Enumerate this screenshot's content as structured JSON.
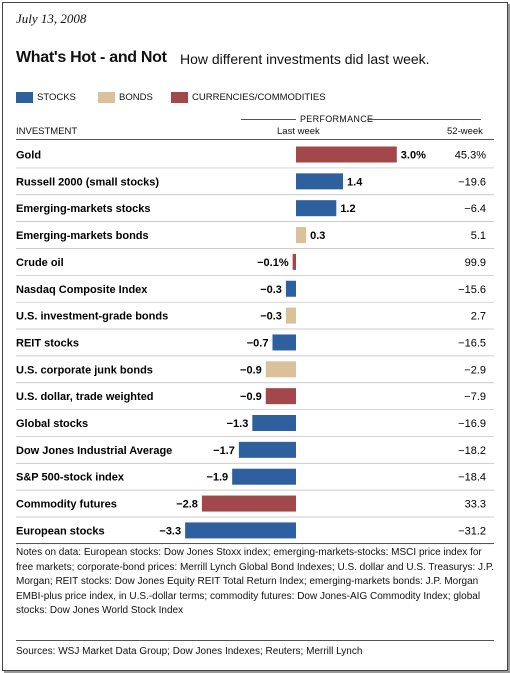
{
  "header": {
    "date": "July 13, 2008",
    "title": "What's Hot - and Not",
    "subtitle": "How different investments did last week."
  },
  "legend": [
    {
      "label": "STOCKS",
      "color": "#2e5f9e"
    },
    {
      "label": "BONDS",
      "color": "#d9c19a"
    },
    {
      "label": "CURRENCIES/COMMODITIES",
      "color": "#a3484a"
    }
  ],
  "columns": {
    "performance": "PERFORMANCE",
    "investment": "INVESTMENT",
    "last_week": "Last week",
    "week52": "52-week"
  },
  "chart_data": {
    "type": "bar",
    "orientation": "horizontal",
    "series_name": "Last week",
    "value_unit": "%",
    "categories": [
      "Gold",
      "Russell 2000 (small stocks)",
      "Emerging-markets stocks",
      "Emerging-markets bonds",
      "Crude oil",
      "Nasdaq Composite Index",
      "U.S. investment-grade bonds",
      "REIT stocks",
      "U.S. corporate junk bonds",
      "U.S. dollar, trade weighted",
      "Global stocks",
      "Dow Jones Industrial Average",
      "S&P 500-stock index",
      "Commodity futures",
      "European stocks"
    ],
    "values": [
      3.0,
      1.4,
      1.2,
      0.3,
      -0.1,
      -0.3,
      -0.3,
      -0.7,
      -0.9,
      -0.9,
      -1.3,
      -1.7,
      -1.9,
      -2.8,
      -3.3
    ],
    "value_labels": [
      "3.0%",
      "1.4",
      "1.2",
      "0.3",
      "−0.1%",
      "−0.3",
      "−0.3",
      "−0.7",
      "−0.9",
      "−0.9",
      "−1.3",
      "−1.7",
      "−1.9",
      "−2.8",
      "−3.3"
    ],
    "asset_class": [
      "commodity",
      "stock",
      "stock",
      "bond",
      "commodity",
      "stock",
      "bond",
      "stock",
      "bond",
      "commodity",
      "stock",
      "stock",
      "stock",
      "commodity",
      "stock"
    ],
    "week52_labels": [
      "45.3%",
      "−19.6",
      "−6.4",
      "5.1",
      "99.9",
      "−15.6",
      "2.7",
      "−16.5",
      "−2.9",
      "−7.9",
      "−16.9",
      "−18.2",
      "−18.4",
      "33.3",
      "−31.2"
    ],
    "colors": {
      "stock": "#2e5f9e",
      "bond": "#d9c19a",
      "commodity": "#a3484a"
    },
    "xlim": [
      -3.3,
      3.0
    ]
  },
  "notes": "Notes on data: European stocks: Dow Jones Stoxx index; emerging-markets-stocks: MSCI price index for free markets; corporate-bond prices: Merrill Lynch Global Bond Indexes; U.S. dollar and U.S. Treasurys: J.P. Morgan; REIT stocks: Dow Jones Equity REIT Total Return Index; emerging-markets bonds: J.P. Morgan EMBI-plus price index, in U.S.-dollar terms; commodity futures: Dow Jones-AIG Commodity Index; global stocks: Dow Jones World Stock Index",
  "sources": "Sources: WSJ Market Data Group; Dow Jones Indexes; Reuters; Merrill Lynch"
}
